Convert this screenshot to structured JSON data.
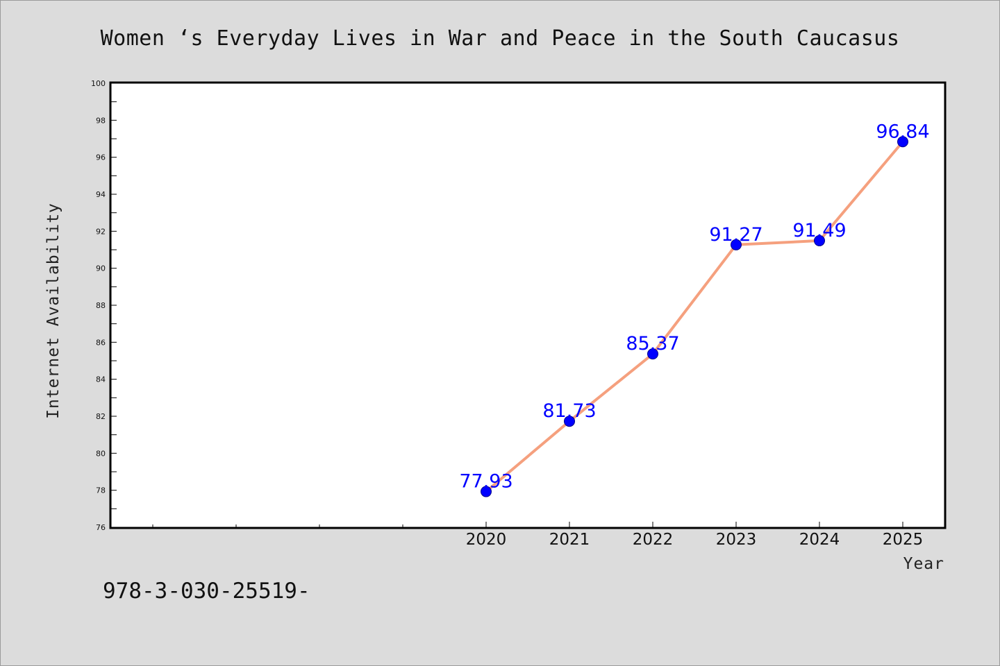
{
  "colors": {
    "background": "#dcdcdc",
    "plot_background": "#ffffff",
    "line": "#f5a07e",
    "marker": "#0000ff",
    "data_label": "#0000ff"
  },
  "footer_text": "978-3-030-25519-",
  "chart_data": {
    "type": "line",
    "title": "Women ‘s Everyday Lives in War and Peace in the South Caucasus",
    "xlabel": "Year",
    "ylabel": "Internet Availability",
    "x": [
      "2020",
      "2021",
      "2022",
      "2023",
      "2024",
      "2025"
    ],
    "series": [
      {
        "values": [
          77.93,
          81.73,
          85.37,
          91.27,
          91.49,
          96.84
        ]
      }
    ],
    "data_labels": [
      "77.93",
      "81.73",
      "85.37",
      "91.27",
      "91.49",
      "96.84"
    ],
    "ylim": [
      76,
      100
    ],
    "yticks": [
      "76",
      "78",
      "80",
      "82",
      "84",
      "86",
      "88",
      "90",
      "92",
      "94",
      "96",
      "98",
      "100"
    ],
    "grid": false,
    "legend": "none"
  }
}
